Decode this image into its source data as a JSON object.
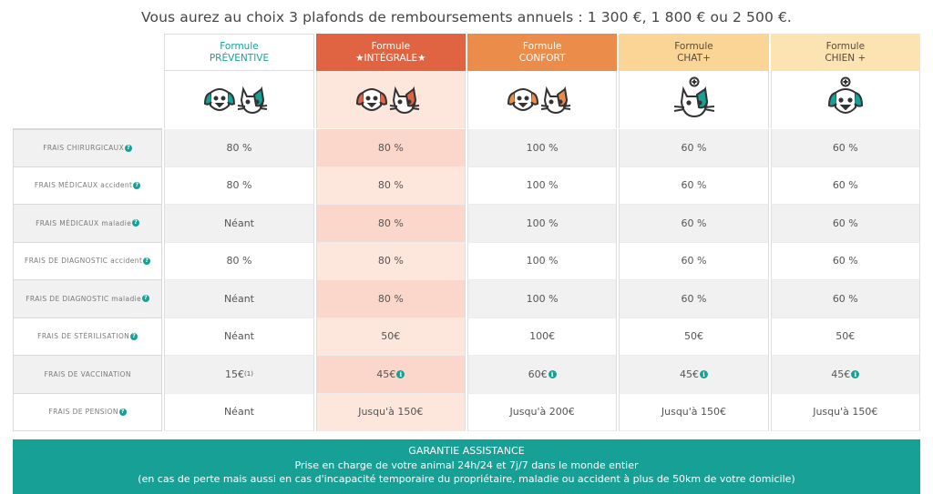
{
  "headline": "Vous aurez au choix 3 plafonds de remboursements annuels : 1 300 €, 1 800 € ou 2 500 €.",
  "plans": [
    {
      "line1": "Formule",
      "line2": "PRÉVENTIVE",
      "icon": "dog-cat-icon"
    },
    {
      "line1": "Formule",
      "line2": "★INTÉGRALE★",
      "icon": "dog-cat-icon"
    },
    {
      "line1": "Formule",
      "line2": "CONFORT",
      "icon": "dog-cat-icon"
    },
    {
      "line1": "Formule",
      "line2": "CHAT+",
      "icon": "cat-plus-icon"
    },
    {
      "line1": "Formule",
      "line2": "CHIEN +",
      "icon": "dog-plus-icon"
    }
  ],
  "rows": [
    {
      "label": "FRAIS CHIRURGICAUX",
      "values": [
        "80 %",
        "80 %",
        "100 %",
        "60 %",
        "60 %"
      ]
    },
    {
      "label": "FRAIS MÉDICAUX accident",
      "values": [
        "80 %",
        "80 %",
        "100 %",
        "60 %",
        "60 %"
      ]
    },
    {
      "label": "FRAIS MÉDICAUX maladie",
      "values": [
        "Néant",
        "80 %",
        "100 %",
        "60 %",
        "60 %"
      ]
    },
    {
      "label": "FRAIS DE DIAGNOSTIC accident",
      "values": [
        "80 %",
        "80 %",
        "100 %",
        "60 %",
        "60 %"
      ]
    },
    {
      "label": "FRAIS DE DIAGNOSTIC maladie",
      "values": [
        "Néant",
        "80 %",
        "100 %",
        "60 %",
        "60 %"
      ]
    },
    {
      "label": "FRAIS DE STÉRILISATION",
      "values": [
        "Néant",
        "50€",
        "100€",
        "50€",
        "50€"
      ]
    },
    {
      "label": "FRAIS DE VACCINATION",
      "values": [
        "15€",
        "45€",
        "60€",
        "45€",
        "45€"
      ],
      "footnote": "(1)"
    },
    {
      "label": "FRAIS DE PENSION",
      "values": [
        "Néant",
        "Jusqu'à 150€",
        "Jusqu'à 200€",
        "Jusqu'à 150€",
        "Jusqu'à 150€"
      ]
    }
  ],
  "banner": {
    "title": "GARANTIE ASSISTANCE",
    "line1": "Prise en charge de votre animal 24h/24 et 7j/7 dans le monde entier",
    "line2": "(en cas de perte mais aussi en cas d'incapacité temporaire du propriétaire, maladie ou accident à plus de 50km de votre domicile)"
  },
  "colors": {
    "teal": "#17a196",
    "integrale": "#e06441",
    "confort": "#eb8c4a",
    "chat": "#fbd595",
    "chien": "#fbe3b2"
  }
}
